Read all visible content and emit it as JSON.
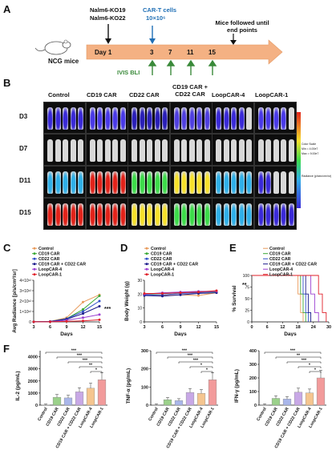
{
  "panels": {
    "A": "A",
    "B": "B",
    "C": "C",
    "D": "D",
    "E": "E",
    "F": "F"
  },
  "timeline": {
    "cells": [
      "Nalm6-KO19",
      "Nalm6-KO22"
    ],
    "cart_label": "CAR-T cells",
    "cart_dose": "10×10⁶",
    "mice_label": "NCG mice",
    "days": [
      "Day 1",
      "3",
      "7",
      "11",
      "15"
    ],
    "imaging": "IVIS BLI",
    "end": "Mice followed until end points",
    "colors": {
      "arrow": "#f4b183",
      "cart": "#1f6fb5",
      "bli": "#3a8a3a"
    }
  },
  "imaging": {
    "columns": [
      "Control",
      "CD19 CAR",
      "CD22 CAR",
      "CD19 CAR + CD22 CAR",
      "LoopCAR-4",
      "LoopCAR-1"
    ],
    "rows": [
      "D3",
      "D7",
      "D11",
      "D15"
    ],
    "colorscale": {
      "title": "Radiance (p/sec/cm²/sr)",
      "scale_label": "Color Scale",
      "min": "Min = 4.00e7",
      "max": "Max = 9.00e7"
    }
  },
  "chart_data": [
    {
      "panel": "C",
      "type": "line",
      "ylabel": "Avg Radiance [p/s/cm²/sr]",
      "xlabel": "Days",
      "x": [
        3,
        6,
        9,
        12,
        15
      ],
      "ylim": [
        0,
        4000000000000.0
      ],
      "yticks": [
        "0",
        "1×10¹²",
        "2×10¹²",
        "3×10¹²",
        "4×10¹²"
      ],
      "significance": "***",
      "series": [
        {
          "name": "Control",
          "color": "#e89a5a",
          "values": [
            10000000000.0,
            50000000000.0,
            400000000000.0,
            1900000000000.0,
            2600000000000.0
          ]
        },
        {
          "name": "CD19 CAR",
          "color": "#39a935",
          "values": [
            10000000000.0,
            40000000000.0,
            300000000000.0,
            1200000000000.0,
            2500000000000.0
          ]
        },
        {
          "name": "CD22 CAR",
          "color": "#2f4fc9",
          "values": [
            10000000000.0,
            40000000000.0,
            300000000000.0,
            1000000000000.0,
            2000000000000.0
          ]
        },
        {
          "name": "CD19 CAR + CD22 CAR",
          "color": "#1a1a8a",
          "values": [
            10000000000.0,
            30000000000.0,
            250000000000.0,
            800000000000.0,
            1500000000000.0
          ]
        },
        {
          "name": "LoopCAR-4",
          "color": "#9b3fd1",
          "values": [
            10000000000.0,
            20000000000.0,
            150000000000.0,
            400000000000.0,
            700000000000.0
          ]
        },
        {
          "name": "LoopCAR-1",
          "color": "#e0202a",
          "values": [
            10000000000.0,
            10000000000.0,
            50000000000.0,
            100000000000.0,
            200000000000.0
          ]
        }
      ]
    },
    {
      "panel": "D",
      "type": "line",
      "ylabel": "Body Weight (g)",
      "xlabel": "Days",
      "x": [
        3,
        6,
        9,
        12,
        15
      ],
      "ylim": [
        0,
        30
      ],
      "yticks": [
        "0",
        "10",
        "20",
        "30"
      ],
      "series": [
        {
          "name": "Control",
          "color": "#e89a5a",
          "values": [
            20,
            19,
            19.5,
            19,
            21
          ]
        },
        {
          "name": "CD19 CAR",
          "color": "#39a935",
          "values": [
            20,
            20.5,
            21,
            21.5,
            21.5
          ]
        },
        {
          "name": "CD22 CAR",
          "color": "#2f4fc9",
          "values": [
            19.5,
            19.5,
            20.5,
            21,
            22
          ]
        },
        {
          "name": "CD19 CAR + CD22 CAR",
          "color": "#1a1a8a",
          "values": [
            19,
            18.5,
            19.5,
            20.5,
            21
          ]
        },
        {
          "name": "LoopCAR-4",
          "color": "#9b3fd1",
          "values": [
            20,
            21,
            21.5,
            22,
            22
          ]
        },
        {
          "name": "LoopCAR-1",
          "color": "#e0202a",
          "values": [
            20.5,
            20.5,
            21,
            21.5,
            22.5
          ]
        }
      ]
    },
    {
      "panel": "E",
      "type": "line",
      "ylabel": "% Survival",
      "xlabel": "Days",
      "x": [
        0,
        6,
        12,
        18,
        24,
        30
      ],
      "ylim": [
        0,
        100
      ],
      "yticks": [
        "0",
        "25",
        "50",
        "75",
        "100"
      ],
      "significance": "**",
      "series": [
        {
          "name": "Control",
          "color": "#e89a5a",
          "drop": [
            18,
            20
          ]
        },
        {
          "name": "CD19 CAR",
          "color": "#39a935",
          "drop": [
            19,
            21
          ]
        },
        {
          "name": "CD22 CAR",
          "color": "#2f4fc9",
          "drop": [
            20,
            22
          ]
        },
        {
          "name": "CD19 CAR + CD22 CAR",
          "color": "#1a1a8a",
          "drop": [
            21,
            23
          ]
        },
        {
          "name": "LoopCAR-4",
          "color": "#9b3fd1",
          "drop": [
            23,
            26
          ]
        },
        {
          "name": "LoopCAR-1",
          "color": "#e0202a",
          "drop": [
            26,
            29
          ]
        }
      ]
    },
    {
      "panel": "F1",
      "type": "bar",
      "ylabel": "IL-2 (pg/mL)",
      "ylim": [
        0,
        4500
      ],
      "yticks": [
        "0",
        "1000",
        "2000",
        "3000",
        "4000"
      ],
      "categories": [
        "Control",
        "CD19 CAR",
        "CD22 CAR",
        "CD19 CAR + CD22 CAR",
        "LoopCAR-4",
        "LoopCAR-1"
      ],
      "values": [
        20,
        650,
        600,
        1100,
        1400,
        2100
      ],
      "colors": [
        "#e5e5e5",
        "#9bd18a",
        "#a9b6ea",
        "#c8a8e6",
        "#f5c58f",
        "#f29b9b"
      ],
      "stars": [
        "***",
        "***",
        "***",
        "**",
        "*"
      ]
    },
    {
      "panel": "F2",
      "type": "bar",
      "ylabel": "TNF-α (pg/mL)",
      "ylim": [
        0,
        300
      ],
      "yticks": [
        "0",
        "100",
        "200",
        "300"
      ],
      "categories": [
        "Control",
        "CD19 CAR",
        "CD22 CAR",
        "CD19 CAR + CD22 CAR",
        "LoopCAR-4",
        "LoopCAR-1"
      ],
      "values": [
        2,
        30,
        25,
        70,
        65,
        140
      ],
      "colors": [
        "#e5e5e5",
        "#9bd18a",
        "#a9b6ea",
        "#c8a8e6",
        "#f5c58f",
        "#f29b9b"
      ],
      "stars": [
        "***",
        "***",
        "***",
        "*",
        "*"
      ]
    },
    {
      "panel": "F3",
      "type": "bar",
      "ylabel": "IFN-γ (pg/mL)",
      "ylim": [
        0,
        400
      ],
      "yticks": [
        "0",
        "100",
        "200",
        "300",
        "400"
      ],
      "categories": [
        "Control",
        "CD19 CAR",
        "CD22 CAR",
        "CD19 CAR + CD22 CAR",
        "LoopCAR-4",
        "LoopCAR-1"
      ],
      "values": [
        3,
        50,
        45,
        95,
        90,
        200
      ],
      "colors": [
        "#e5e5e5",
        "#9bd18a",
        "#a9b6ea",
        "#c8a8e6",
        "#f5c58f",
        "#f29b9b"
      ],
      "stars": [
        "***",
        "**",
        "***",
        "*",
        "*"
      ]
    }
  ]
}
